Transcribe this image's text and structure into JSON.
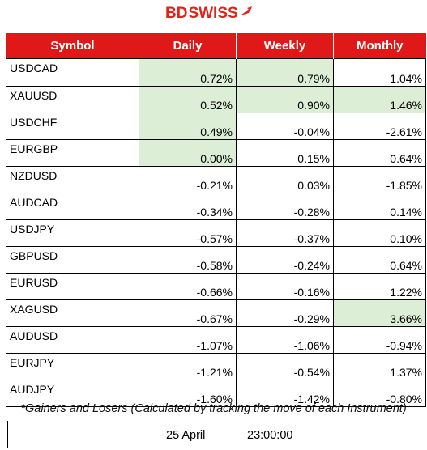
{
  "logo": {
    "part1": "BD",
    "part2": "SWISS"
  },
  "colors": {
    "header_bg": "#e01818",
    "highlight": "#dcefd6",
    "brand": "#e2231a"
  },
  "table": {
    "headers": {
      "symbol": "Symbol",
      "daily": "Daily",
      "weekly": "Weekly",
      "monthly": "Monthly"
    },
    "rows": [
      {
        "symbol": "USDCAD",
        "daily": "0.72%",
        "weekly": "0.79%",
        "monthly": "1.04%",
        "hl": [
          true,
          true,
          false
        ]
      },
      {
        "symbol": "XAUUSD",
        "daily": "0.52%",
        "weekly": "0.90%",
        "monthly": "1.46%",
        "hl": [
          true,
          true,
          true
        ]
      },
      {
        "symbol": "USDCHF",
        "daily": "0.49%",
        "weekly": "-0.04%",
        "monthly": "-2.61%",
        "hl": [
          true,
          false,
          false
        ]
      },
      {
        "symbol": "EURGBP",
        "daily": "0.00%",
        "weekly": "0.15%",
        "monthly": "0.64%",
        "hl": [
          true,
          false,
          false
        ]
      },
      {
        "symbol": "NZDUSD",
        "daily": "-0.21%",
        "weekly": "0.03%",
        "monthly": "-1.85%",
        "hl": [
          false,
          false,
          false
        ]
      },
      {
        "symbol": "AUDCAD",
        "daily": "-0.34%",
        "weekly": "-0.28%",
        "monthly": "0.14%",
        "hl": [
          false,
          false,
          false
        ]
      },
      {
        "symbol": "USDJPY",
        "daily": "-0.57%",
        "weekly": "-0.37%",
        "monthly": "0.10%",
        "hl": [
          false,
          false,
          false
        ]
      },
      {
        "symbol": "GBPUSD",
        "daily": "-0.58%",
        "weekly": "-0.24%",
        "monthly": "0.64%",
        "hl": [
          false,
          false,
          false
        ]
      },
      {
        "symbol": "EURUSD",
        "daily": "-0.66%",
        "weekly": "-0.16%",
        "monthly": "1.22%",
        "hl": [
          false,
          false,
          false
        ]
      },
      {
        "symbol": "XAGUSD",
        "daily": "-0.67%",
        "weekly": "-0.29%",
        "monthly": "3.66%",
        "hl": [
          false,
          false,
          true
        ]
      },
      {
        "symbol": "AUDUSD",
        "daily": "-1.07%",
        "weekly": "-1.06%",
        "monthly": "-0.94%",
        "hl": [
          false,
          false,
          false
        ]
      },
      {
        "symbol": "EURJPY",
        "daily": "-1.21%",
        "weekly": "-0.54%",
        "monthly": "1.37%",
        "hl": [
          false,
          false,
          false
        ]
      },
      {
        "symbol": "AUDJPY",
        "daily": "-1.60%",
        "weekly": "-1.42%",
        "monthly": "-0.80%",
        "hl": [
          false,
          false,
          false
        ]
      }
    ]
  },
  "footer": {
    "note": "*Gainers and Losers (Calculated by tracking the move of each Instrument)",
    "date": "25 April",
    "time": "23:00:00"
  }
}
